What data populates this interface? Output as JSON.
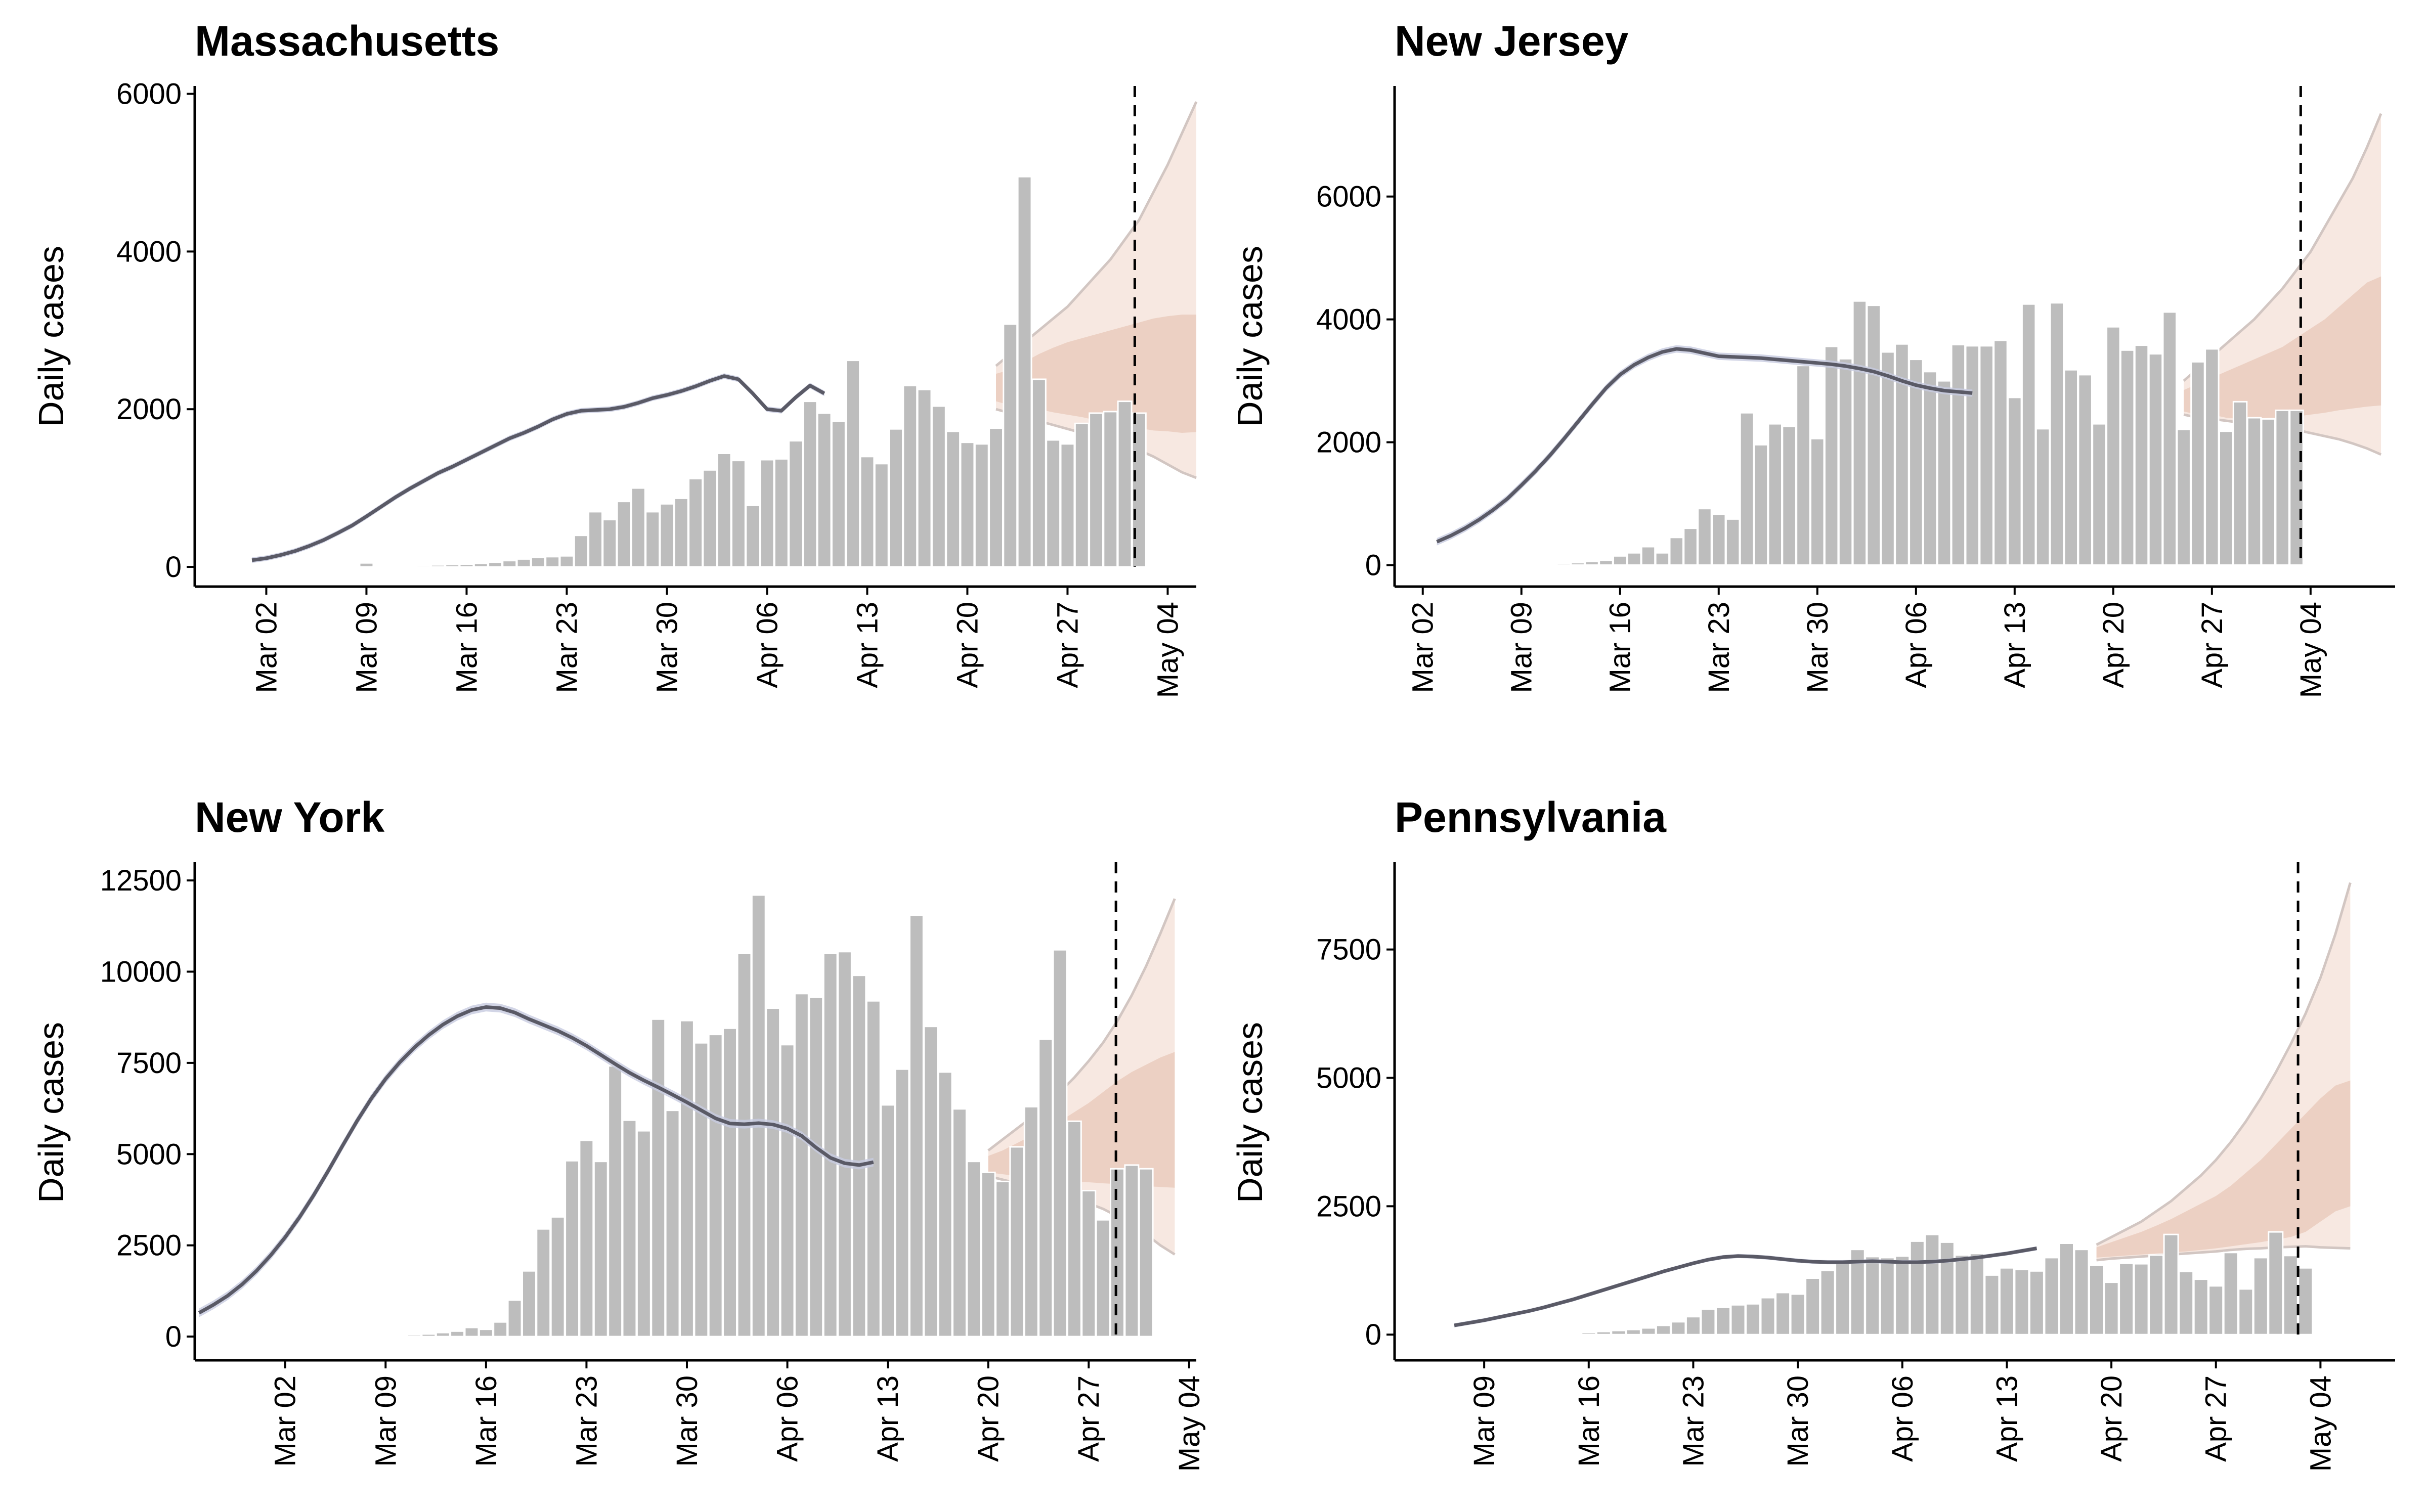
{
  "figure": {
    "colors": {
      "bars": "#bdbdbd",
      "fit_line": "#5a5a66",
      "fit_band": "#c7cbe0",
      "forecast_outer": "#f6e4dc",
      "forecast_inner": "#e8c8b8",
      "forecast_edge": "#d2c6c2"
    }
  },
  "chart_data": [
    {
      "type": "bar",
      "title": "Massachusetts",
      "ylabel": "Daily cases",
      "xlabel": "",
      "ylim": [
        -250,
        6100
      ],
      "yticks": [
        0,
        2000,
        4000,
        6000
      ],
      "xticks": [
        "Mar 02",
        "Mar 09",
        "Mar 16",
        "Mar 23",
        "Mar 30",
        "Apr 06",
        "Apr 13",
        "Apr 20",
        "Apr 27",
        "May 04"
      ],
      "xlim_days": [
        -5,
        65
      ],
      "tick_days": [
        0,
        7,
        14,
        21,
        28,
        35,
        42,
        49,
        56,
        63
      ],
      "bars": {
        "start_day": 0,
        "values": [
          0,
          1,
          2,
          5,
          8,
          10,
          15,
          50,
          10,
          15,
          18,
          20,
          25,
          30,
          35,
          45,
          60,
          80,
          100,
          120,
          130,
          140,
          400,
          700,
          600,
          830,
          1000,
          700,
          800,
          870,
          1120,
          1230,
          1440,
          1350,
          780,
          1360,
          1370,
          1600,
          2100,
          1950,
          1850,
          2620,
          1400,
          1310,
          1750,
          2300,
          2250,
          2040,
          1720,
          1580,
          1560,
          1760,
          3080,
          4950,
          2380,
          1610,
          1560,
          1820,
          1950,
          1970,
          2100,
          1950
        ]
      },
      "fit": {
        "start_day": -1,
        "values": [
          85,
          110,
          150,
          200,
          265,
          340,
          430,
          525,
          640,
          760,
          880,
          990,
          1090,
          1190,
          1270,
          1360,
          1450,
          1540,
          1630,
          1700,
          1780,
          1870,
          1940,
          1980,
          1990,
          2000,
          2030,
          2080,
          2140,
          2180,
          2230,
          2290,
          2360,
          2420,
          2380,
          2200,
          2000,
          1980,
          2150,
          2300,
          2200
        ],
        "band": 35
      },
      "forecast": {
        "start_day": 51,
        "median": [
          2300,
          2300,
          2320,
          2380,
          2450,
          2520,
          2580,
          2600,
          2580,
          2560,
          2550,
          2500,
          2450,
          2400,
          2380
        ],
        "inner_lo": [
          2100,
          2050,
          2020,
          2000,
          1960,
          1930,
          1900,
          1860,
          1820,
          1780,
          1760,
          1730,
          1720,
          1700,
          1710
        ],
        "inner_hi": [
          2450,
          2500,
          2600,
          2700,
          2780,
          2850,
          2900,
          2950,
          3000,
          3050,
          3100,
          3150,
          3180,
          3200,
          3200
        ],
        "outer_lo": [
          2000,
          1950,
          1900,
          1850,
          1800,
          1750,
          1700,
          1650,
          1600,
          1550,
          1480,
          1400,
          1300,
          1200,
          1130
        ],
        "outer_hi": [
          2550,
          2700,
          2850,
          3000,
          3150,
          3300,
          3500,
          3700,
          3900,
          4150,
          4400,
          4750,
          5100,
          5500,
          5900
        ]
      },
      "now_day": 60.7
    },
    {
      "type": "bar",
      "title": "New Jersey",
      "ylabel": "Daily cases",
      "xlabel": "",
      "ylim": [
        -350,
        7800
      ],
      "yticks": [
        0,
        2000,
        4000,
        6000
      ],
      "xticks": [
        "Mar 02",
        "Mar 09",
        "Mar 16",
        "Mar 23",
        "Mar 30",
        "Apr 06",
        "Apr 13",
        "Apr 20",
        "Apr 27",
        "May 04"
      ],
      "xlim_days": [
        -2,
        69
      ],
      "tick_days": [
        0,
        7,
        14,
        21,
        28,
        35,
        42,
        49,
        56,
        63
      ],
      "bars": {
        "start_day": 0,
        "values": [
          0,
          1,
          2,
          3,
          5,
          8,
          10,
          15,
          20,
          25,
          30,
          40,
          60,
          80,
          150,
          200,
          300,
          200,
          450,
          600,
          920,
          830,
          750,
          2480,
          1960,
          2300,
          2260,
          3250,
          2060,
          3560,
          3360,
          4300,
          4230,
          3470,
          3600,
          3350,
          3150,
          3000,
          3590,
          3570,
          3570,
          3660,
          2730,
          4250,
          2220,
          4270,
          3180,
          3100,
          2300,
          3880,
          3500,
          3580,
          3440,
          4120,
          2210,
          3310,
          3520,
          2180,
          2660,
          2400,
          2380,
          2520,
          2520
        ]
      },
      "fit": {
        "start_day": 1,
        "values": [
          380,
          480,
          600,
          740,
          900,
          1080,
          1300,
          1530,
          1780,
          2050,
          2330,
          2610,
          2880,
          3100,
          3260,
          3380,
          3470,
          3520,
          3500,
          3450,
          3400,
          3390,
          3380,
          3370,
          3350,
          3330,
          3310,
          3290,
          3270,
          3240,
          3200,
          3150,
          3080,
          3000,
          2930,
          2880,
          2840,
          2820,
          2800
        ],
        "band": 60
      },
      "forecast": {
        "start_day": 54,
        "median": [
          2700,
          2750,
          2800,
          2850,
          2900,
          2950,
          3000,
          3050,
          3100,
          3150,
          3200,
          3250,
          3300,
          3350,
          3350
        ],
        "inner_lo": [
          2500,
          2450,
          2450,
          2400,
          2380,
          2380,
          2400,
          2400,
          2420,
          2450,
          2480,
          2520,
          2550,
          2580,
          2600
        ],
        "inner_hi": [
          2850,
          2950,
          3050,
          3150,
          3250,
          3350,
          3450,
          3550,
          3700,
          3850,
          4000,
          4200,
          4400,
          4600,
          4700
        ],
        "outer_lo": [
          2450,
          2400,
          2380,
          2350,
          2320,
          2300,
          2280,
          2250,
          2200,
          2150,
          2100,
          2050,
          1980,
          1900,
          1800
        ],
        "outer_hi": [
          3000,
          3200,
          3400,
          3600,
          3800,
          4000,
          4250,
          4500,
          4800,
          5100,
          5500,
          5900,
          6300,
          6800,
          7350
        ]
      },
      "now_day": 62.3
    },
    {
      "type": "bar",
      "title": "New York",
      "ylabel": "Daily cases",
      "xlabel": "",
      "ylim": [
        -650,
        13000
      ],
      "yticks": [
        0,
        2500,
        5000,
        7500,
        10000,
        12500
      ],
      "xticks": [
        "Mar 02",
        "Mar 09",
        "Mar 16",
        "Mar 23",
        "Mar 30",
        "Apr 06",
        "Apr 13",
        "Apr 20",
        "Apr 27",
        "May 04"
      ],
      "xlim_days": [
        -6.3,
        63.5
      ],
      "tick_days": [
        0,
        7,
        14,
        21,
        28,
        35,
        42,
        49,
        56,
        63
      ],
      "bars": {
        "start_day": 0,
        "values": [
          0,
          0,
          1,
          1,
          5,
          10,
          15,
          30,
          30,
          50,
          70,
          110,
          150,
          250,
          200,
          400,
          1000,
          1800,
          2950,
          3280,
          4820,
          5380,
          4800,
          7420,
          5930,
          5640,
          8700,
          6200,
          8660,
          8050,
          8280,
          8450,
          10500,
          12100,
          9000,
          8000,
          9400,
          9300,
          10500,
          10550,
          9900,
          9200,
          6350,
          7330,
          11550,
          8500,
          7250,
          6240,
          4800,
          4500,
          4250,
          5200,
          6300,
          8150,
          10600,
          5900,
          4000,
          3200,
          4600,
          4700,
          4600
        ]
      },
      "fit": {
        "start_day": -6,
        "values": [
          650,
          870,
          1120,
          1430,
          1800,
          2230,
          2720,
          3270,
          3880,
          4540,
          5230,
          5900,
          6520,
          7060,
          7520,
          7920,
          8260,
          8550,
          8780,
          8950,
          9030,
          9000,
          8880,
          8700,
          8540,
          8380,
          8190,
          7970,
          7720,
          7470,
          7230,
          7020,
          6830,
          6630,
          6420,
          6200,
          5980,
          5840,
          5820,
          5850,
          5810,
          5700,
          5500,
          5180,
          4900,
          4750,
          4700,
          4780
        ]
      },
      "fit_band": 120,
      "forecast": {
        "start_day": 49,
        "median": [
          4700,
          4750,
          4850,
          4950,
          5100,
          5250,
          5450,
          5650,
          5900,
          6150,
          6300,
          6450,
          6600,
          6700
        ],
        "inner_lo": [
          4500,
          4450,
          4400,
          4350,
          4300,
          4270,
          4250,
          4230,
          4200,
          4180,
          4150,
          4120,
          4100,
          4080
        ],
        "inner_hi": [
          4950,
          5100,
          5300,
          5500,
          5700,
          5900,
          6150,
          6400,
          6700,
          7000,
          7250,
          7450,
          7650,
          7800
        ],
        "outer_lo": [
          4400,
          4300,
          4200,
          4100,
          4000,
          3900,
          3780,
          3650,
          3500,
          3300,
          3050,
          2800,
          2500,
          2250
        ],
        "outer_hi": [
          5100,
          5400,
          5700,
          6000,
          6350,
          6700,
          7100,
          7550,
          8050,
          8650,
          9350,
          10150,
          11050,
          12000
        ]
      },
      "now_day": 57.9
    },
    {
      "type": "bar",
      "title": "Pennsylvania",
      "ylabel": "Daily cases",
      "xlabel": "",
      "ylim": [
        -500,
        9200
      ],
      "yticks": [
        0,
        2500,
        5000,
        7500
      ],
      "xticks": [
        "Mar 09",
        "Mar 16",
        "Mar 23",
        "Mar 30",
        "Apr 06",
        "Apr 13",
        "Apr 20",
        "Apr 27",
        "May 04"
      ],
      "xlim_days": [
        1,
        68
      ],
      "tick_days": [
        7,
        14,
        21,
        28,
        35,
        42,
        49,
        56,
        63
      ],
      "bars": {
        "start_day": 6,
        "values": [
          0,
          1,
          2,
          5,
          10,
          15,
          20,
          30,
          40,
          60,
          80,
          100,
          130,
          180,
          250,
          350,
          500,
          530,
          580,
          600,
          720,
          820,
          790,
          1100,
          1250,
          1420,
          1660,
          1520,
          1500,
          1530,
          1820,
          1950,
          1800,
          1550,
          1580,
          1160,
          1300,
          1270,
          1240,
          1500,
          1780,
          1660,
          1350,
          1020,
          1390,
          1380,
          1550,
          1950,
          1230,
          1080,
          950,
          1600,
          890,
          1500,
          2000,
          1540,
          1300
        ]
      },
      "fit": {
        "start_day": 5,
        "values": [
          180,
          230,
          280,
          340,
          400,
          460,
          530,
          610,
          690,
          780,
          870,
          960,
          1050,
          1140,
          1230,
          1310,
          1390,
          1460,
          1510,
          1530,
          1520,
          1500,
          1470,
          1440,
          1420,
          1410,
          1410,
          1420,
          1430,
          1420,
          1410,
          1410,
          1420,
          1440,
          1470,
          1500,
          1540,
          1580,
          1630,
          1680
        ],
        "band": 40
      },
      "forecast": {
        "start_day": 48,
        "median": [
          1600,
          1650,
          1700,
          1780,
          1850,
          1950,
          2050,
          2180,
          2300,
          2450,
          2600,
          2800,
          3000,
          3200,
          3450,
          3700,
          3850,
          3900
        ],
        "inner_lo": [
          1500,
          1520,
          1540,
          1560,
          1580,
          1600,
          1620,
          1650,
          1680,
          1720,
          1760,
          1800,
          1850,
          1900,
          2000,
          2200,
          2400,
          2500
        ],
        "inner_hi": [
          1700,
          1800,
          1900,
          2000,
          2120,
          2250,
          2400,
          2550,
          2700,
          2900,
          3150,
          3400,
          3700,
          4000,
          4300,
          4600,
          4850,
          4950
        ],
        "outer_lo": [
          1450,
          1480,
          1500,
          1520,
          1540,
          1560,
          1580,
          1600,
          1620,
          1650,
          1670,
          1680,
          1700,
          1710,
          1720,
          1700,
          1690,
          1680
        ],
        "outer_hi": [
          1750,
          1900,
          2050,
          2200,
          2400,
          2600,
          2850,
          3100,
          3400,
          3750,
          4150,
          4600,
          5100,
          5650,
          6250,
          6950,
          7800,
          8800
        ]
      },
      "now_day": 61.5
    }
  ]
}
